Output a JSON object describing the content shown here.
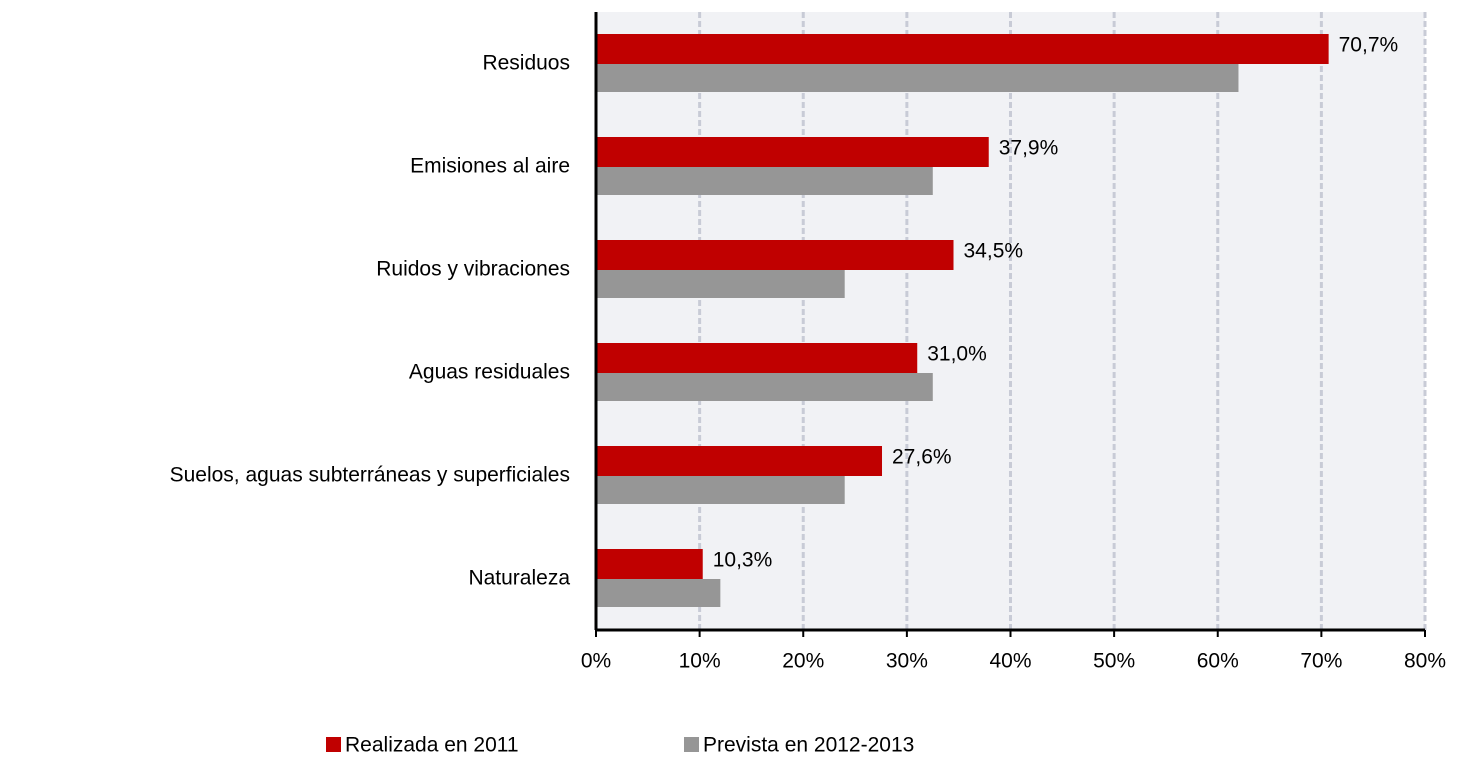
{
  "chart_data": {
    "type": "hbar",
    "categories": [
      "Residuos",
      "Emisiones al aire",
      "Ruidos y vibraciones",
      "Aguas residuales",
      "Suelos, aguas subterráneas  y superficiales",
      "Naturaleza"
    ],
    "series": [
      {
        "name": "Realizada en 2011",
        "color": "#c00000",
        "values": [
          70.7,
          37.9,
          34.5,
          31.0,
          27.6,
          10.3
        ],
        "value_labels": [
          "70,7%",
          "37,9%",
          "34,5%",
          "31,0%",
          "27,6%",
          "10,3%"
        ]
      },
      {
        "name": "Prevista en 2012-2013",
        "color": "#969696",
        "values": [
          62.0,
          32.5,
          24.0,
          32.5,
          24.0,
          12.0
        ]
      }
    ],
    "xlim": [
      0,
      80
    ],
    "xticks": [
      {
        "value": 0,
        "label": "0%"
      },
      {
        "value": 10,
        "label": "10%"
      },
      {
        "value": 20,
        "label": "20%"
      },
      {
        "value": 30,
        "label": "30%"
      },
      {
        "value": 40,
        "label": "40%"
      },
      {
        "value": 50,
        "label": "50%"
      },
      {
        "value": 60,
        "label": "60%"
      },
      {
        "value": 70,
        "label": "70%"
      },
      {
        "value": 80,
        "label": "80%"
      }
    ],
    "grid": true,
    "legend": "bottom"
  }
}
